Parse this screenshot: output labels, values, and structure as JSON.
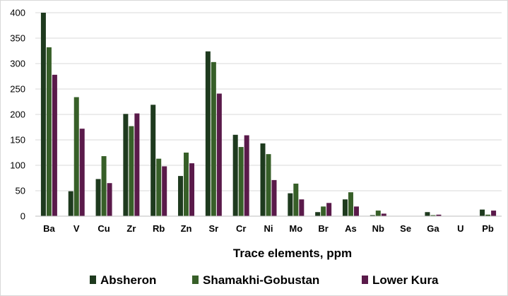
{
  "chart_data": {
    "type": "bar",
    "title": "",
    "xlabel": "Trace elements, ppm",
    "ylabel": "",
    "ylim": [
      0,
      400
    ],
    "yticks": [
      0,
      50,
      100,
      150,
      200,
      250,
      300,
      350,
      400
    ],
    "grid": true,
    "legend_position": "bottom",
    "categories": [
      "Ba",
      "V",
      "Cu",
      "Zr",
      "Rb",
      "Zn",
      "Sr",
      "Cr",
      "Ni",
      "Mo",
      "Br",
      "As",
      "Nb",
      "Se",
      "Ga",
      "U",
      "Pb"
    ],
    "series": [
      {
        "name": "Absheron",
        "color": "#1e3a1e",
        "values": [
          400,
          49,
          73,
          201,
          219,
          79,
          324,
          160,
          143,
          45,
          8,
          33,
          2,
          0,
          8,
          0,
          13
        ]
      },
      {
        "name": "Shamakhi-Gobustan",
        "color": "#375f28",
        "values": [
          332,
          234,
          118,
          177,
          113,
          125,
          303,
          136,
          122,
          64,
          19,
          47,
          11,
          0,
          2,
          0,
          3
        ]
      },
      {
        "name": "Lower Kura",
        "color": "#5a1a4a",
        "values": [
          278,
          172,
          65,
          202,
          98,
          104,
          241,
          159,
          71,
          33,
          26,
          19,
          5,
          0,
          3,
          0,
          11
        ]
      }
    ]
  }
}
